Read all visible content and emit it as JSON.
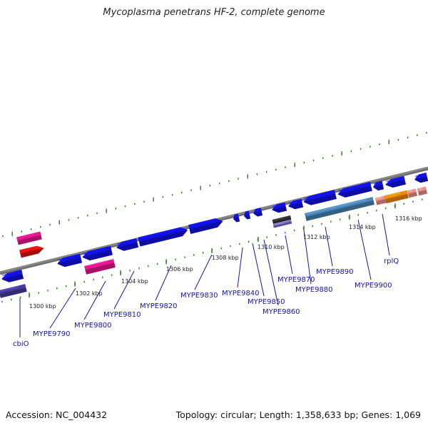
{
  "title": "Mycoplasma penetrans HF-2, complete genome",
  "footer": {
    "accession": "Accession: NC_004432",
    "summary": "Topology: circular; Length: 1,358,633 bp; Genes: 1,069"
  },
  "colors": {
    "backbone": "#8a8a8a",
    "ticks": "#2b7a1e",
    "gene_blue": "#1212e6",
    "gene_pink": "#e8168c",
    "gene_red": "#e81010",
    "gene_orange": "#f08a00",
    "gene_salmon": "#f0908a",
    "gene_steel": "#4a86b8",
    "gene_purple": "#4a3ca0",
    "label": "#1414b4"
  },
  "scale_labels": [
    "1300 kbp",
    "1302 kbp",
    "1304 kbp",
    "1306 kbp",
    "1308 kbp",
    "1310 kbp",
    "1312 kbp",
    "1314 kbp",
    "1316 kbp"
  ],
  "gene_labels": [
    "cbiO",
    "MYPE9790",
    "MYPE9800",
    "MYPE9810",
    "MYPE9820",
    "MYPE9830",
    "MYPE9840",
    "MYPE9850",
    "MYPE9860",
    "MYPE9870",
    "MYPE9880",
    "MYPE9890",
    "MYPE9900",
    "rplQ"
  ]
}
